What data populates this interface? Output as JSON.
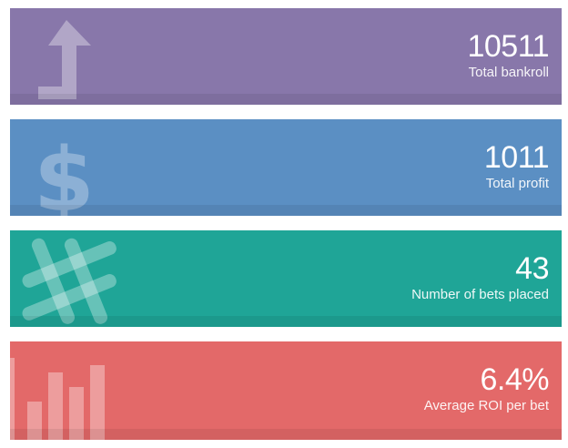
{
  "colors": {
    "bankroll": "#8877aa",
    "profit": "#5b8fc3",
    "bets": "#1fa597",
    "roi": "#e36969"
  },
  "cards": [
    {
      "value": "10511",
      "label": "Total bankroll",
      "icon": "arrow-up-icon"
    },
    {
      "value": "1011",
      "label": "Total profit",
      "icon": "dollar-icon"
    },
    {
      "value": "43",
      "label": "Number of bets placed",
      "icon": "hash-icon"
    },
    {
      "value": "6.4%",
      "label": "Average ROI per bet",
      "icon": "bar-chart-icon"
    }
  ]
}
